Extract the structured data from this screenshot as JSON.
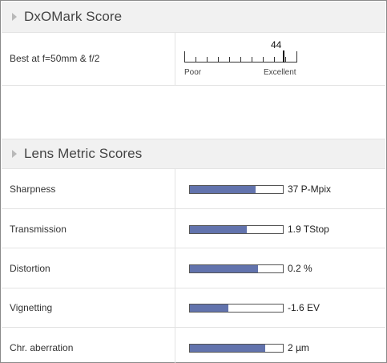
{
  "dxomark": {
    "title": "DxOMark Score",
    "row_label": "Best at f=50mm & f/2",
    "score": "44",
    "score_value": 44,
    "scale_min_label": "Poor",
    "scale_max_label": "Excellent"
  },
  "metrics": {
    "title": "Lens Metric Scores",
    "items": [
      {
        "label": "Sharpness",
        "value": "37 P-Mpix",
        "fill": 0.71
      },
      {
        "label": "Transmission",
        "value": "1.9 TStop",
        "fill": 0.61
      },
      {
        "label": "Distortion",
        "value": "0.2 %",
        "fill": 0.73
      },
      {
        "label": "Vignetting",
        "value": "-1.6 EV",
        "fill": 0.41
      },
      {
        "label": "Chr. aberration",
        "value": "2 µm",
        "fill": 0.81
      }
    ]
  },
  "colors": {
    "bar_fill": "#6273ad",
    "header_bg": "#f1f1f1"
  }
}
